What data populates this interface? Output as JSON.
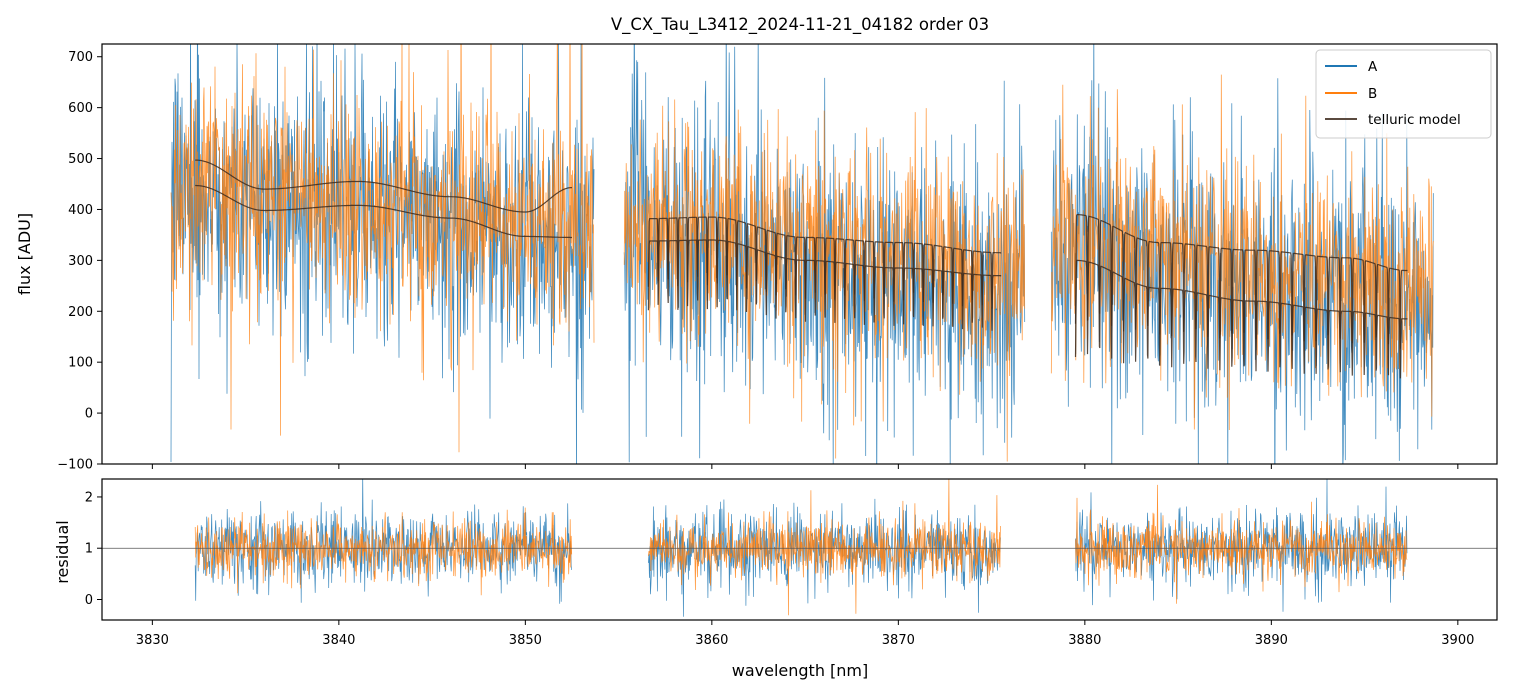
{
  "chart_data": {
    "type": "line",
    "title": "V_CX_Tau_L3412_2024-11-21_04182  order 03",
    "colors": {
      "A": "#1f77b4",
      "B": "#ff7f0e",
      "telluric": "#3d2b1f",
      "ref": "#555555"
    },
    "legend": {
      "position": "top-right",
      "entries": [
        "A",
        "B",
        "telluric model"
      ]
    },
    "segments": [
      {
        "range": [
          3831.0,
          3853.7
        ],
        "modelRange": [
          3832.3,
          3852.5
        ]
      },
      {
        "range": [
          3855.3,
          3876.8
        ],
        "modelRange": [
          3856.6,
          3875.5
        ]
      },
      {
        "range": [
          3878.2,
          3898.7
        ],
        "modelRange": [
          3879.5,
          3897.3
        ]
      }
    ],
    "panels": [
      {
        "name": "flux",
        "ylabel": "flux [ADU]",
        "ylim": [
          -100,
          725
        ],
        "yticks": [
          -100,
          0,
          100,
          200,
          300,
          400,
          500,
          600,
          700
        ],
        "xticks_labeled": false,
        "series": [
          {
            "name": "A",
            "noise_sigma": 130,
            "segment_levels": [
              {
                "start": 445,
                "end": 330
              },
              {
                "start": 350,
                "end": 230
              },
              {
                "start": 320,
                "end": 200
              }
            ]
          },
          {
            "name": "B",
            "noise_sigma": 105,
            "segment_levels": [
              {
                "start": 460,
                "end": 350
              },
              {
                "start": 370,
                "end": 260
              },
              {
                "start": 340,
                "end": 230
              }
            ]
          }
        ],
        "telluric_model": [
          {
            "x": [
              3832.3,
              3836,
              3841,
              3846,
              3850,
              3852.5
            ],
            "upper": [
              497,
              440,
              455,
              425,
              395,
              443
            ],
            "lower": [
              447,
              398,
              408,
              383,
              347,
              345
            ],
            "lines_per_nm": 0
          },
          {
            "x": [
              3856.6,
              3860,
              3865,
              3870,
              3875.5
            ],
            "upper": [
              382,
              385,
              345,
              335,
              315
            ],
            "lower": [
              338,
              340,
              300,
              285,
              270
            ],
            "lines_per_nm": 1.9,
            "depth": 0.35
          },
          {
            "x": [
              3879.5,
              3884,
              3889,
              3894,
              3897.3
            ],
            "upper": [
              390,
              335,
              320,
              305,
              280
            ],
            "lower": [
              300,
              245,
              220,
              200,
              185
            ],
            "lines_per_nm": 1.55,
            "depth": 0.55
          }
        ]
      },
      {
        "name": "residual",
        "ylabel": "residual",
        "xlabel": "wavelength [nm]",
        "ylim": [
          -0.4,
          2.35
        ],
        "yticks": [
          0,
          1,
          2
        ],
        "reference_line": 1,
        "residual_sigma": {
          "A": 0.35,
          "B": 0.28
        }
      }
    ],
    "xlim": [
      3827.3,
      3902.1
    ],
    "xticks": [
      3830,
      3840,
      3850,
      3860,
      3870,
      3880,
      3890,
      3900
    ]
  }
}
